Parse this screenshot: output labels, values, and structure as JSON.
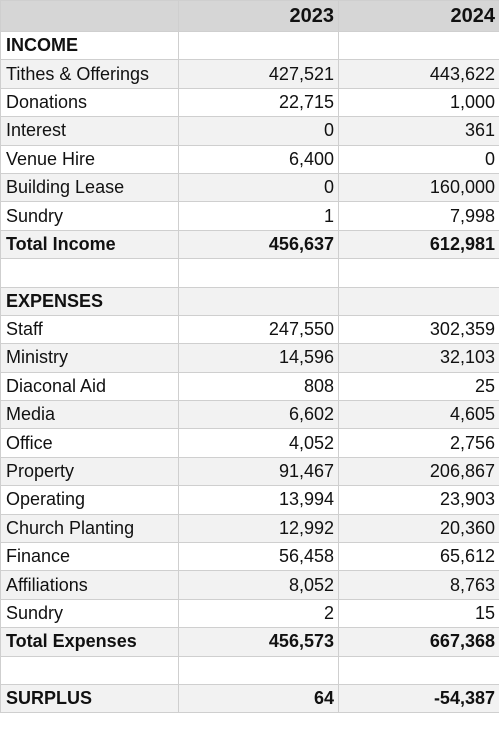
{
  "table": {
    "columns": [
      "2023",
      "2024"
    ],
    "sections": [
      {
        "title": "INCOME",
        "rows": [
          {
            "label": "Tithes & Offerings",
            "values": [
              "427,521",
              "443,622"
            ]
          },
          {
            "label": "Donations",
            "values": [
              "22,715",
              "1,000"
            ]
          },
          {
            "label": "Interest",
            "values": [
              "0",
              "361"
            ]
          },
          {
            "label": "Venue Hire",
            "values": [
              "6,400",
              "0"
            ]
          },
          {
            "label": "Building Lease",
            "values": [
              "0",
              "160,000"
            ]
          },
          {
            "label": "Sundry",
            "values": [
              "1",
              "7,998"
            ]
          }
        ],
        "total": {
          "label": "Total Income",
          "values": [
            "456,637",
            "612,981"
          ]
        }
      },
      {
        "title": "EXPENSES",
        "rows": [
          {
            "label": "Staff",
            "values": [
              "247,550",
              "302,359"
            ]
          },
          {
            "label": "Ministry",
            "values": [
              "14,596",
              "32,103"
            ]
          },
          {
            "label": "Diaconal Aid",
            "values": [
              "808",
              "25"
            ]
          },
          {
            "label": "Media",
            "values": [
              "6,602",
              "4,605"
            ]
          },
          {
            "label": "Office",
            "values": [
              "4,052",
              "2,756"
            ]
          },
          {
            "label": "Property",
            "values": [
              "91,467",
              "206,867"
            ]
          },
          {
            "label": "Operating",
            "values": [
              "13,994",
              "23,903"
            ]
          },
          {
            "label": "Church Planting",
            "values": [
              "12,992",
              "20,360"
            ]
          },
          {
            "label": "Finance",
            "values": [
              "56,458",
              "65,612"
            ]
          },
          {
            "label": "Affiliations",
            "values": [
              "8,052",
              "8,763"
            ]
          },
          {
            "label": "Sundry",
            "values": [
              "2",
              "15"
            ]
          }
        ],
        "total": {
          "label": "Total Expenses",
          "values": [
            "456,573",
            "667,368"
          ]
        }
      }
    ],
    "surplus": {
      "label": "SURPLUS",
      "values": [
        "64",
        "-54,387"
      ]
    }
  }
}
